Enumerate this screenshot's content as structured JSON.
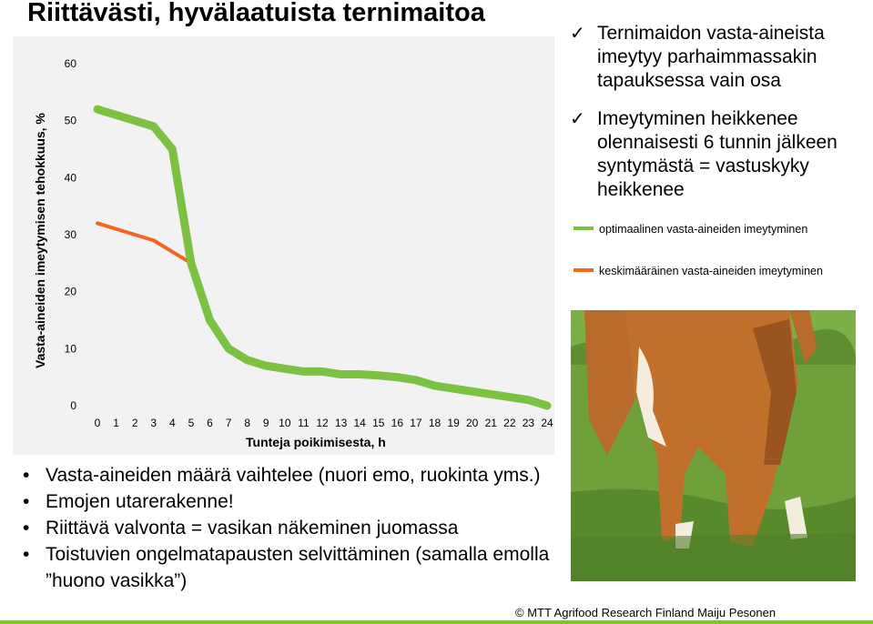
{
  "title": "Riittävästi, hyvälaatuista ternimaitoa",
  "chart_data": {
    "type": "line",
    "xlabel": "Tunteja poikimisesta, h",
    "ylabel": "Vasta-aineiden imeytymisen tehokkuus, %",
    "x": [
      0,
      1,
      2,
      3,
      4,
      5,
      6,
      7,
      8,
      9,
      10,
      11,
      12,
      13,
      14,
      15,
      16,
      17,
      18,
      19,
      20,
      21,
      22,
      23,
      24
    ],
    "yticks": [
      0,
      10,
      20,
      30,
      40,
      50,
      60
    ],
    "ylim": [
      0,
      60
    ],
    "xlim": [
      0,
      24
    ],
    "grid": false,
    "legend_position": "right",
    "series": [
      {
        "name": "optimaalinen vasta-aineiden imeytyminen",
        "color": "#7cc242",
        "values": [
          52,
          51,
          50,
          49,
          45,
          25,
          15,
          10,
          8,
          7,
          6.5,
          6,
          6,
          5.5,
          5.5,
          5.3,
          5,
          4.5,
          3.5,
          3,
          2.5,
          2,
          1.5,
          1,
          0
        ]
      },
      {
        "name": "keskimääräinen vasta-aineiden imeytyminen",
        "color": "#f26522",
        "values": [
          32,
          31,
          30,
          29,
          27,
          25,
          15,
          10,
          8,
          7,
          6.5,
          6,
          6,
          5.5,
          5.5,
          5.3,
          5,
          4.5,
          3.5,
          3,
          2.5,
          2,
          1.5,
          1,
          0
        ]
      }
    ]
  },
  "checks": [
    "Ternimaidon vasta-aineista imeytyy parhaimmassakin tapauksessa vain osa",
    "Imeytyminen heikkenee olennaisesti 6 tunnin jälkeen syntymästä = vastuskyky heikkenee"
  ],
  "check_mark": "✓",
  "bullet_mark": "•",
  "bullets": [
    "Vasta-aineiden määrä vaihtelee (nuori emo, ruokinta yms.)",
    "Emojen utarerakenne!",
    "Riittävä valvonta = vasikan näkeminen juomassa",
    "Toistuvien ongelmatapausten selvittäminen (samalla emolla ”huono vasikka”)"
  ],
  "credit": "© MTT Agrifood Research Finland Maiju Pesonen"
}
